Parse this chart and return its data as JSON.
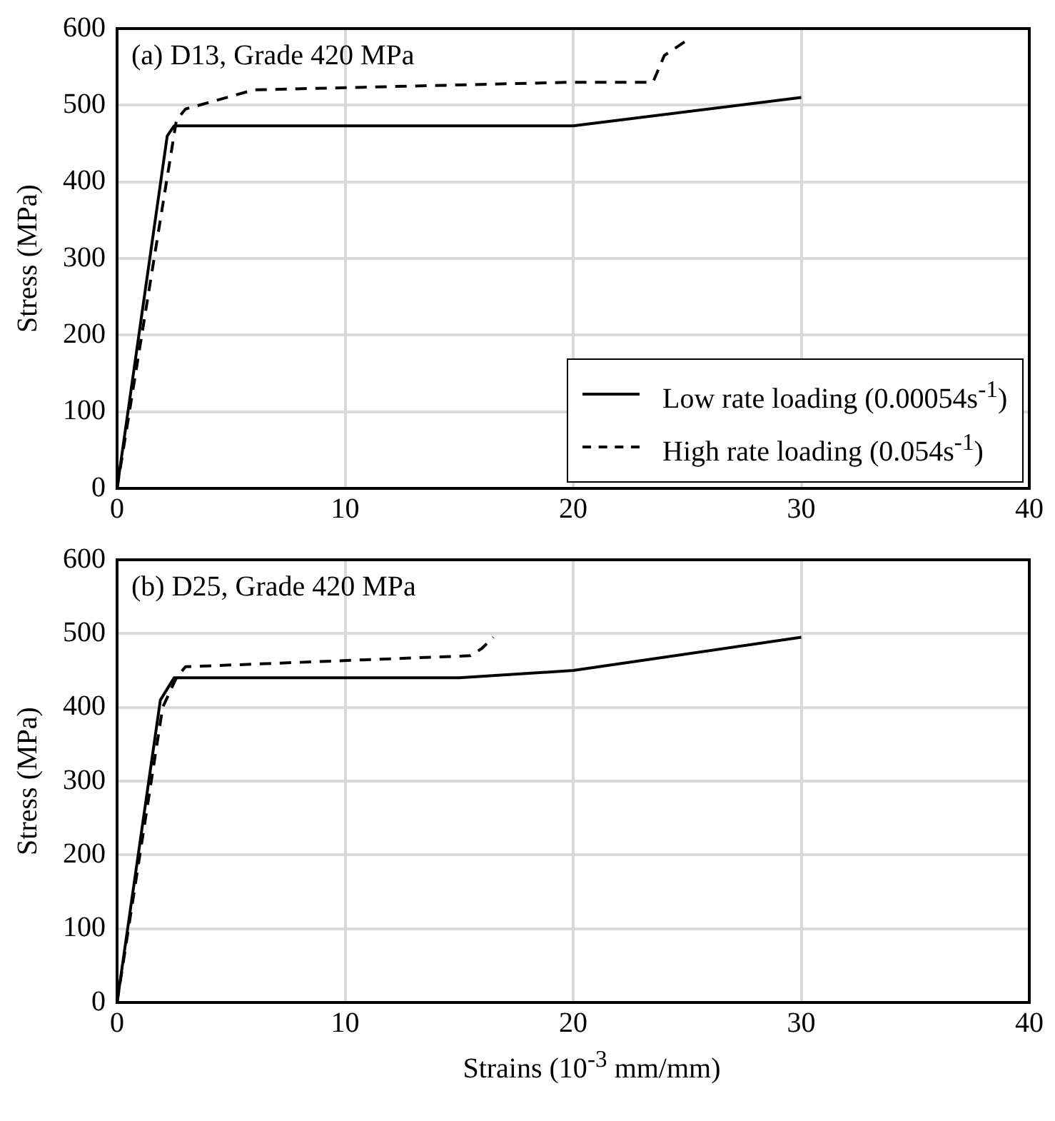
{
  "chart_data": [
    {
      "type": "line",
      "annotations": [
        "(a) D13, Grade 420 MPa"
      ],
      "ylabel": "Stress (MPa)",
      "xlim": [
        0,
        40
      ],
      "xticks": [
        0,
        10,
        20,
        30,
        40
      ],
      "ylim": [
        0,
        600
      ],
      "yticks": [
        0,
        100,
        200,
        300,
        400,
        500,
        600
      ],
      "grid": true,
      "legend": "bottom right",
      "marker": "none",
      "series": [
        {
          "name": "Low rate loading (0.00054s$^{-1}$)",
          "color": "#000000",
          "line_style": "solid",
          "x": [
            0,
            2.2,
            2.5,
            20,
            30
          ],
          "values": [
            0,
            460,
            473,
            473,
            510
          ]
        },
        {
          "name": "High rate loading (0.054s$^{-1}$)",
          "color": "#000000",
          "line_style": "dashed",
          "x": [
            0,
            2.6,
            3,
            6,
            20,
            23.5,
            24,
            25
          ],
          "values": [
            0,
            480,
            495,
            520,
            530,
            530,
            565,
            585
          ]
        }
      ]
    },
    {
      "type": "line",
      "annotations": [
        "(b) D25, Grade 420 MPa"
      ],
      "xlabel": "Strains (10$^{-3}$ mm/mm)",
      "ylabel": "Stress (MPa)",
      "xlim": [
        0,
        40
      ],
      "xticks": [
        0,
        10,
        20,
        30,
        40
      ],
      "ylim": [
        0,
        600
      ],
      "yticks": [
        0,
        100,
        200,
        300,
        400,
        500,
        600
      ],
      "grid": true,
      "marker": "none",
      "series": [
        {
          "color": "#000000",
          "line_style": "solid",
          "x": [
            0,
            1.9,
            2.5,
            15,
            20,
            30
          ],
          "values": [
            0,
            410,
            440,
            440,
            450,
            495
          ]
        },
        {
          "color": "#000000",
          "line_style": "dashed",
          "x": [
            0,
            2,
            2.6,
            3,
            15.5,
            16,
            16.5
          ],
          "values": [
            0,
            400,
            440,
            455,
            470,
            480,
            495
          ]
        }
      ]
    }
  ]
}
